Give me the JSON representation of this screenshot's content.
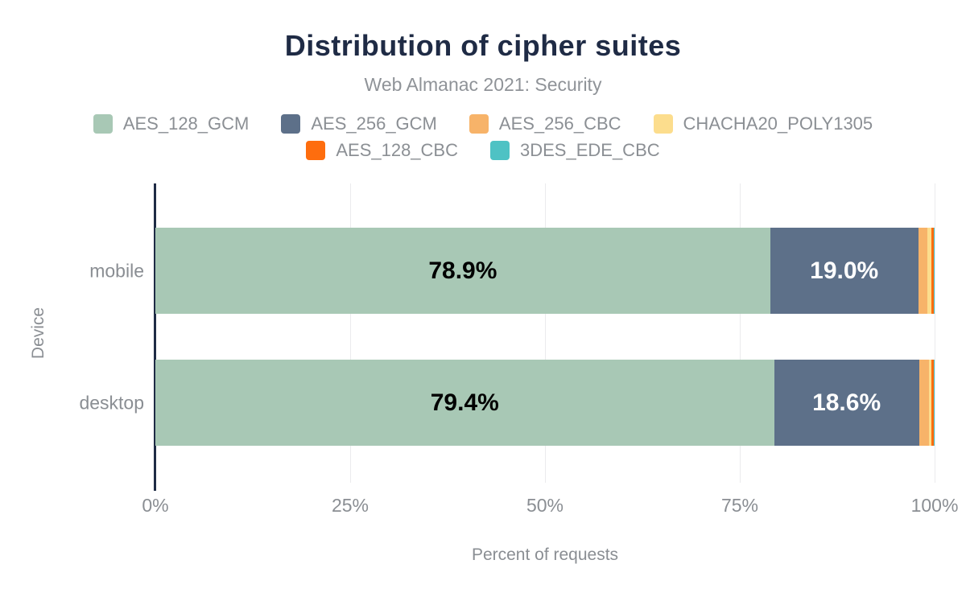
{
  "chart_data": {
    "type": "bar",
    "variant": "horizontal-stacked",
    "title": "Distribution of cipher suites",
    "subtitle": "Web Almanac 2021: Security",
    "xlabel": "Percent of requests",
    "ylabel": "Device",
    "categories": [
      "mobile",
      "desktop"
    ],
    "series": [
      {
        "name": "AES_128_GCM",
        "color": "#a8c8b5",
        "values": [
          78.9,
          79.4
        ],
        "labels": [
          "78.9%",
          "79.4%"
        ],
        "label_color": "#000000"
      },
      {
        "name": "AES_256_GCM",
        "color": "#5d7089",
        "values": [
          19.0,
          18.6
        ],
        "labels": [
          "19.0%",
          "18.6%"
        ],
        "label_color": "#ffffff"
      },
      {
        "name": "AES_256_CBC",
        "color": "#f7b369",
        "values": [
          1.2,
          1.3
        ],
        "labels": [
          "",
          ""
        ],
        "label_color": "#000000"
      },
      {
        "name": "CHACHA20_POLY1305",
        "color": "#fcdd8d",
        "values": [
          0.5,
          0.3
        ],
        "labels": [
          "",
          ""
        ],
        "label_color": "#000000"
      },
      {
        "name": "AES_128_CBC",
        "color": "#fe6d0e",
        "values": [
          0.3,
          0.3
        ],
        "labels": [
          "",
          ""
        ],
        "label_color": "#000000"
      },
      {
        "name": "3DES_EDE_CBC",
        "color": "#4ec2c4",
        "values": [
          0.1,
          0.1
        ],
        "labels": [
          "",
          ""
        ],
        "label_color": "#000000"
      }
    ],
    "legend_rows": [
      4,
      2
    ],
    "x_ticks": [
      "0%",
      "25%",
      "50%",
      "75%",
      "100%"
    ],
    "xlim": [
      0,
      100
    ],
    "grid": true,
    "legend_position": "top",
    "note": "unlabeled small segment values estimated from pixel widths"
  }
}
